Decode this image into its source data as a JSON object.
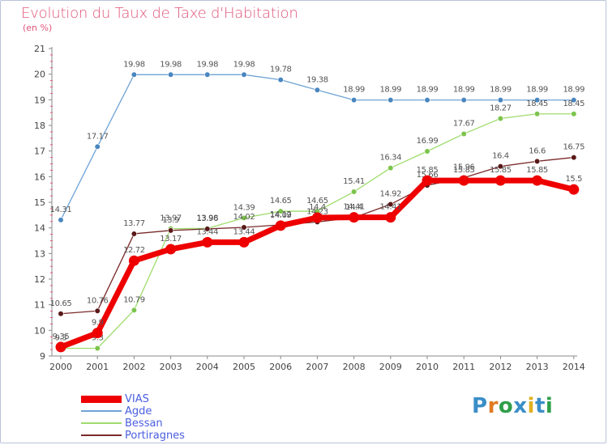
{
  "header": {
    "title": "Evolution du Taux de Taxe d'Habitation",
    "unit": "(en %)"
  },
  "brand": {
    "text": "Proxiti",
    "letters": [
      "P",
      "r",
      "o",
      "x",
      "i",
      "t",
      "i"
    ],
    "colors": [
      "#3a8ec8",
      "#e07a22",
      "#2f9e4a",
      "#3a8ec8",
      "#e0b020",
      "#3a8ec8",
      "#2f9e4a"
    ]
  },
  "chart_data": {
    "type": "line",
    "x": [
      "2000",
      "2001",
      "2002",
      "2003",
      "2004",
      "2005",
      "2006",
      "2007",
      "2008",
      "2009",
      "2010",
      "2011",
      "2012",
      "2013",
      "2014"
    ],
    "ylim": [
      9,
      21
    ],
    "yticks": [
      "9",
      "10",
      "11",
      "12",
      "13",
      "14",
      "15",
      "16",
      "17",
      "18",
      "19",
      "20",
      "21"
    ],
    "grid": false,
    "legend_position": "bottom-left",
    "series": [
      {
        "name": "Agde",
        "color": "#6fa3d5",
        "marker": "#4a86c0",
        "values": [
          14.31,
          17.17,
          19.98,
          19.98,
          19.98,
          19.98,
          19.78,
          19.38,
          18.99,
          18.99,
          18.99,
          18.99,
          18.99,
          18.99,
          18.99
        ],
        "labels": [
          "14.31",
          "17.17",
          "19.98",
          "19.98",
          "19.98",
          "19.98",
          "19.78",
          "19.38",
          "18.99",
          "18.99",
          "18.99",
          "18.99",
          "18.99",
          "18.99",
          "18.99"
        ]
      },
      {
        "name": "Bessan",
        "color": "#9edc6c",
        "marker": "#7cc44c",
        "values": [
          9.3,
          9.3,
          10.79,
          13.97,
          13.98,
          14.39,
          14.65,
          14.65,
          15.41,
          16.34,
          16.99,
          17.67,
          18.27,
          18.45,
          18.45
        ],
        "labels": [
          "9.3",
          "9.3",
          "10.79",
          "13.97",
          "13.98",
          "14.39",
          "14.65",
          "14.65",
          "15.41",
          "16.34",
          "16.99",
          "17.67",
          "18.27",
          "18.45",
          "18.45"
        ]
      },
      {
        "name": "Portiragnes",
        "color": "#7a2a2a",
        "marker": "#5a1818",
        "values": [
          10.65,
          10.76,
          13.77,
          13.9,
          13.96,
          14.02,
          14.12,
          14.23,
          14.4,
          14.92,
          15.66,
          15.96,
          16.4,
          16.6,
          16.75
        ],
        "labels": [
          "10.65",
          "10.76",
          "13.77",
          "13.9",
          "13.96",
          "14.02",
          "14.12",
          "14.23",
          "14.4",
          "14.92",
          "15.66",
          "15.96",
          "16.4",
          "16.6",
          "16.75"
        ]
      },
      {
        "name": "VIAS",
        "color": "#ee0000",
        "marker": "#ee0000",
        "values": [
          9.35,
          9.9,
          12.72,
          13.17,
          13.44,
          13.44,
          14.09,
          14.4,
          14.41,
          14.41,
          15.85,
          15.85,
          15.85,
          15.85,
          15.5
        ],
        "labels": [
          "9.35",
          "9.9",
          "12.72",
          "13.17",
          "13.44",
          "13.44",
          "14.09",
          "14.4",
          "14.41",
          "14.41",
          "15.85",
          "15.85",
          "15.85",
          "15.85",
          "15.5"
        ]
      }
    ],
    "legend": [
      {
        "name": "VIAS",
        "color": "#ee0000"
      },
      {
        "name": "Agde",
        "color": "#6fa3d5"
      },
      {
        "name": "Bessan",
        "color": "#9edc6c"
      },
      {
        "name": "Portiragnes",
        "color": "#7a2a2a"
      }
    ],
    "label_color": "#555555",
    "axis_color": "#888888"
  }
}
